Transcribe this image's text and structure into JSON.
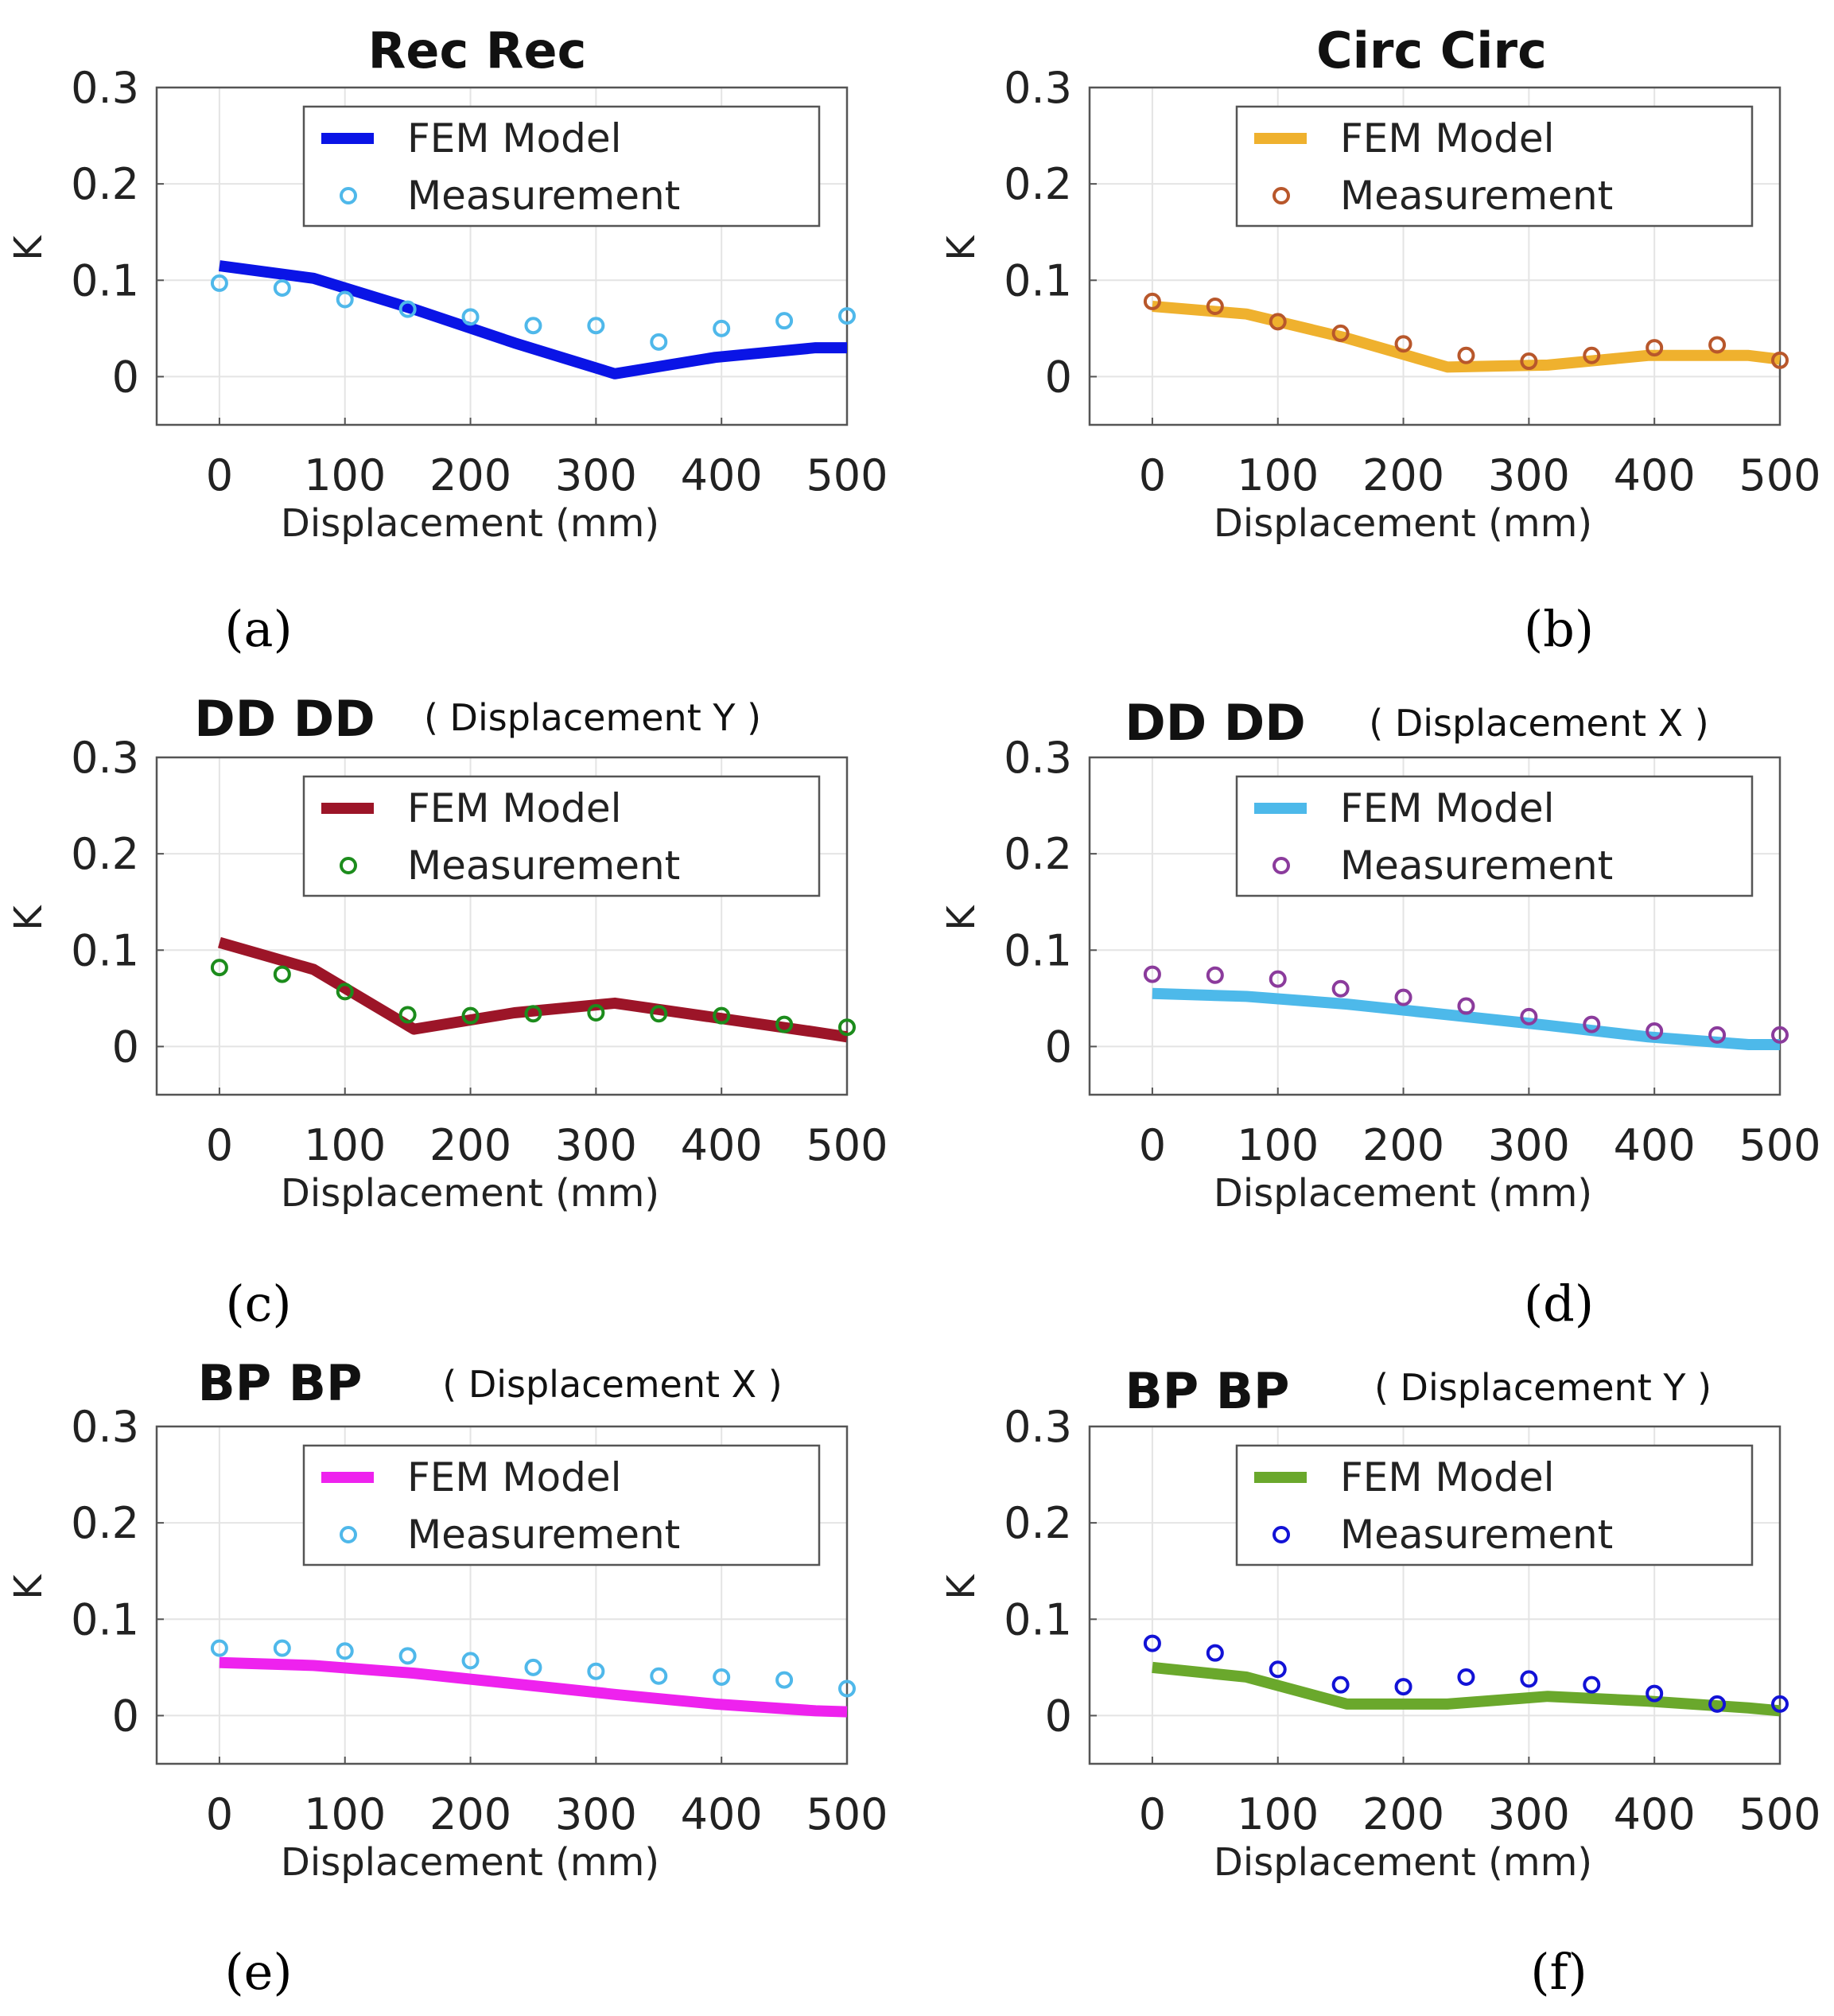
{
  "chart_data": [
    {
      "type": "line",
      "title": "Rec Rec",
      "subtitle": "",
      "panel_label": "(a)",
      "xlabel": "Displacement (mm)",
      "ylabel": "K",
      "xlim": [
        -50,
        500
      ],
      "ylim": [
        -0.05,
        0.3
      ],
      "xticks": [
        0,
        100,
        200,
        300,
        400,
        500
      ],
      "yticks": [
        0,
        0.1,
        0.2,
        0.3
      ],
      "xtick_labels": [
        "0",
        "100",
        "200",
        "300",
        "400",
        "500"
      ],
      "ytick_labels": [
        "0",
        "0.1",
        "0.2",
        "0.3"
      ],
      "grid": true,
      "legend": "top-right",
      "series": [
        {
          "name": "FEM Model",
          "kind": "line",
          "color": "#0a14e6",
          "x": [
            0,
            75,
            155,
            235,
            315,
            395,
            475,
            500
          ],
          "y": [
            0.115,
            0.102,
            0.07,
            0.035,
            0.003,
            0.02,
            0.03,
            0.03
          ]
        },
        {
          "name": "Measurement",
          "kind": "marker",
          "color": "#4fb8ea",
          "x": [
            0,
            50,
            100,
            150,
            200,
            250,
            300,
            350,
            400,
            450,
            500
          ],
          "y": [
            0.097,
            0.092,
            0.08,
            0.07,
            0.062,
            0.053,
            0.053,
            0.036,
            0.05,
            0.058,
            0.063
          ]
        }
      ]
    },
    {
      "type": "line",
      "title": "Circ Circ",
      "subtitle": "",
      "panel_label": "(b)",
      "xlabel": "Displacement (mm)",
      "ylabel": "K",
      "xlim": [
        -50,
        500
      ],
      "ylim": [
        -0.05,
        0.3
      ],
      "xticks": [
        0,
        100,
        200,
        300,
        400,
        500
      ],
      "yticks": [
        0,
        0.1,
        0.2,
        0.3
      ],
      "xtick_labels": [
        "0",
        "100",
        "200",
        "300",
        "400",
        "500"
      ],
      "ytick_labels": [
        "0",
        "0.1",
        "0.2",
        "0.3"
      ],
      "grid": true,
      "legend": "top-right",
      "series": [
        {
          "name": "FEM Model",
          "kind": "line",
          "color": "#efb12e",
          "x": [
            0,
            75,
            155,
            235,
            315,
            395,
            475,
            500
          ],
          "y": [
            0.073,
            0.065,
            0.04,
            0.01,
            0.012,
            0.022,
            0.022,
            0.018
          ]
        },
        {
          "name": "Measurement",
          "kind": "marker",
          "color": "#b8572b",
          "x": [
            0,
            50,
            100,
            150,
            200,
            250,
            300,
            350,
            400,
            450,
            500
          ],
          "y": [
            0.078,
            0.073,
            0.057,
            0.045,
            0.034,
            0.022,
            0.016,
            0.022,
            0.03,
            0.033,
            0.017
          ]
        }
      ]
    },
    {
      "type": "line",
      "title": "DD DD",
      "subtitle": "( Displacement Y )",
      "panel_label": "(c)",
      "xlabel": "Displacement (mm)",
      "ylabel": "K",
      "xlim": [
        -50,
        500
      ],
      "ylim": [
        -0.05,
        0.3
      ],
      "xticks": [
        0,
        100,
        200,
        300,
        400,
        500
      ],
      "yticks": [
        0,
        0.1,
        0.2,
        0.3
      ],
      "xtick_labels": [
        "0",
        "100",
        "200",
        "300",
        "400",
        "500"
      ],
      "ytick_labels": [
        "0",
        "0.1",
        "0.2",
        "0.3"
      ],
      "grid": true,
      "legend": "top-right",
      "series": [
        {
          "name": "FEM Model",
          "kind": "line",
          "color": "#9c1528",
          "x": [
            0,
            75,
            155,
            235,
            315,
            395,
            475,
            500
          ],
          "y": [
            0.108,
            0.08,
            0.018,
            0.035,
            0.045,
            0.03,
            0.015,
            0.01
          ]
        },
        {
          "name": "Measurement",
          "kind": "marker",
          "color": "#1c8c1c",
          "x": [
            0,
            50,
            100,
            150,
            200,
            250,
            300,
            350,
            400,
            450,
            500
          ],
          "y": [
            0.082,
            0.075,
            0.057,
            0.033,
            0.032,
            0.034,
            0.035,
            0.034,
            0.032,
            0.023,
            0.02
          ]
        }
      ]
    },
    {
      "type": "line",
      "title": "DD DD",
      "subtitle": "( Displacement X )",
      "panel_label": "(d)",
      "xlabel": "Displacement (mm)",
      "ylabel": "K",
      "xlim": [
        -50,
        500
      ],
      "ylim": [
        -0.05,
        0.3
      ],
      "xticks": [
        0,
        100,
        200,
        300,
        400,
        500
      ],
      "yticks": [
        0,
        0.1,
        0.2,
        0.3
      ],
      "xtick_labels": [
        "0",
        "100",
        "200",
        "300",
        "400",
        "500"
      ],
      "ytick_labels": [
        "0",
        "0.1",
        "0.2",
        "0.3"
      ],
      "grid": true,
      "legend": "top-right",
      "series": [
        {
          "name": "FEM Model",
          "kind": "line",
          "color": "#4db9ea",
          "x": [
            0,
            75,
            155,
            235,
            315,
            395,
            475,
            500
          ],
          "y": [
            0.055,
            0.052,
            0.044,
            0.033,
            0.022,
            0.01,
            0.002,
            0.002
          ]
        },
        {
          "name": "Measurement",
          "kind": "marker",
          "color": "#8b3b9c",
          "x": [
            0,
            50,
            100,
            150,
            200,
            250,
            300,
            350,
            400,
            450,
            500
          ],
          "y": [
            0.075,
            0.074,
            0.07,
            0.06,
            0.051,
            0.042,
            0.031,
            0.023,
            0.016,
            0.012,
            0.012
          ]
        }
      ]
    },
    {
      "type": "line",
      "title": "BP BP",
      "subtitle": "( Displacement X )",
      "panel_label": "(e)",
      "xlabel": "Displacement (mm)",
      "ylabel": "K",
      "xlim": [
        -50,
        500
      ],
      "ylim": [
        -0.05,
        0.3
      ],
      "xticks": [
        0,
        100,
        200,
        300,
        400,
        500
      ],
      "yticks": [
        0,
        0.1,
        0.2,
        0.3
      ],
      "xtick_labels": [
        "0",
        "100",
        "200",
        "300",
        "400",
        "500"
      ],
      "ytick_labels": [
        "0",
        "0.1",
        "0.2",
        "0.3"
      ],
      "grid": true,
      "legend": "top-right",
      "series": [
        {
          "name": "FEM Model",
          "kind": "line",
          "color": "#ee22ee",
          "x": [
            0,
            75,
            155,
            235,
            315,
            395,
            475,
            500
          ],
          "y": [
            0.055,
            0.052,
            0.044,
            0.033,
            0.022,
            0.012,
            0.005,
            0.004
          ]
        },
        {
          "name": "Measurement",
          "kind": "marker",
          "color": "#4fb8ea",
          "x": [
            0,
            50,
            100,
            150,
            200,
            250,
            300,
            350,
            400,
            450,
            500
          ],
          "y": [
            0.07,
            0.07,
            0.067,
            0.062,
            0.057,
            0.05,
            0.046,
            0.041,
            0.04,
            0.037,
            0.028
          ]
        }
      ]
    },
    {
      "type": "line",
      "title": "BP BP",
      "subtitle": "( Displacement Y )",
      "panel_label": "(f)",
      "xlabel": "Displacement (mm)",
      "ylabel": "K",
      "xlim": [
        -50,
        500
      ],
      "ylim": [
        -0.05,
        0.3
      ],
      "xticks": [
        0,
        100,
        200,
        300,
        400,
        500
      ],
      "yticks": [
        0,
        0.1,
        0.2,
        0.3
      ],
      "xtick_labels": [
        "0",
        "100",
        "200",
        "300",
        "400",
        "500"
      ],
      "ytick_labels": [
        "0",
        "0.1",
        "0.2",
        "0.3"
      ],
      "grid": true,
      "legend": "top-right",
      "series": [
        {
          "name": "FEM Model",
          "kind": "line",
          "color": "#6aa82c",
          "x": [
            0,
            75,
            155,
            235,
            315,
            395,
            475,
            500
          ],
          "y": [
            0.05,
            0.04,
            0.012,
            0.012,
            0.02,
            0.015,
            0.008,
            0.005
          ]
        },
        {
          "name": "Measurement",
          "kind": "marker",
          "color": "#1212d6",
          "x": [
            0,
            50,
            100,
            150,
            200,
            250,
            300,
            350,
            400,
            450,
            500
          ],
          "y": [
            0.075,
            0.065,
            0.048,
            0.032,
            0.03,
            0.04,
            0.038,
            0.032,
            0.023,
            0.012,
            0.012
          ]
        }
      ]
    }
  ]
}
